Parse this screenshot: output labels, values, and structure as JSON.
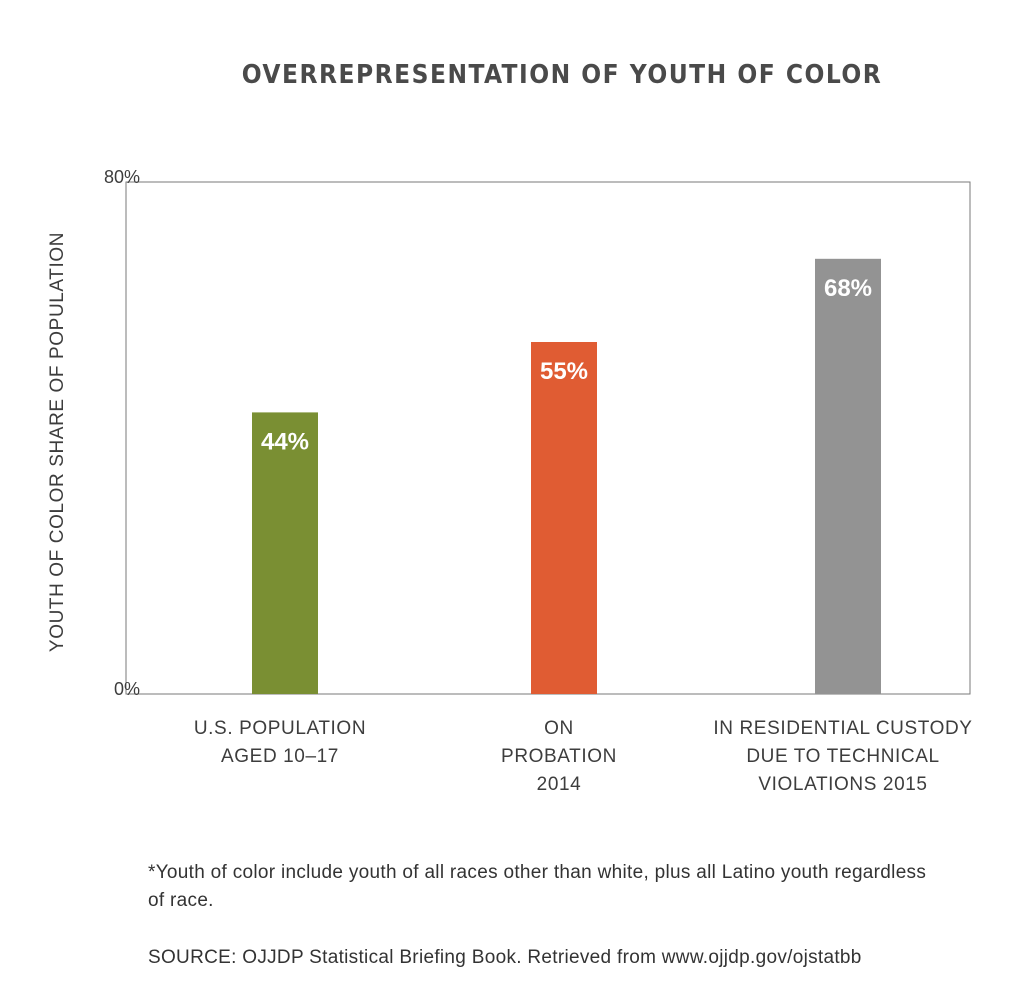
{
  "chart_data": {
    "type": "bar",
    "title": "OVERREPRESENTATION OF YOUTH OF COLOR",
    "ylabel": "YOUTH OF COLOR SHARE OF POPULATION",
    "ylim": [
      0,
      80
    ],
    "y_ticks": [
      "0%",
      "80%"
    ],
    "categories": [
      [
        "U.S. POPULATION",
        "AGED 10–17"
      ],
      [
        "ON",
        "PROBATION",
        "2014"
      ],
      [
        "IN RESIDENTIAL CUSTODY",
        "DUE TO TECHNICAL",
        "VIOLATIONS  2015"
      ]
    ],
    "values": [
      44,
      55,
      68
    ],
    "data_labels": [
      "44%",
      "55%",
      "68%"
    ],
    "colors": [
      "#7a8f33",
      "#e05c33",
      "#939393"
    ],
    "grid": false
  },
  "footnote": "*Youth of color include youth of all races other than white, plus all Latino youth regardless of race.",
  "source": "SOURCE: OJJDP Statistical Briefing Book. Retrieved from www.ojjdp.gov/ojstatbb"
}
